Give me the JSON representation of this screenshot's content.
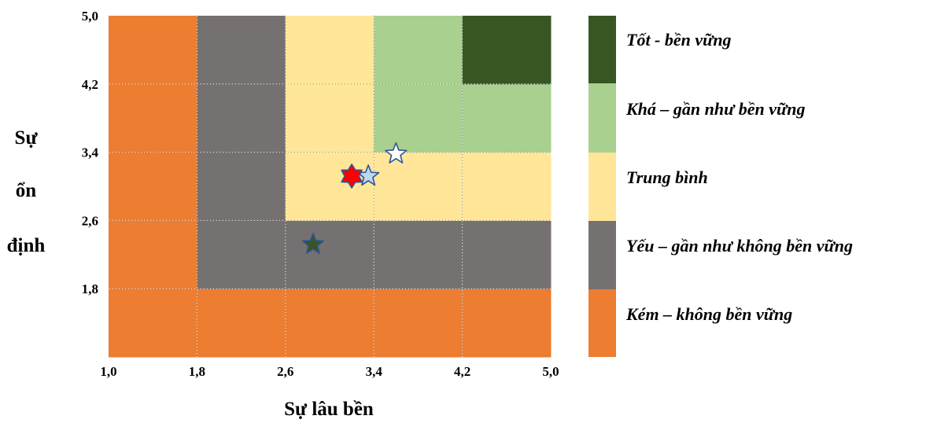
{
  "chart_data": {
    "type": "heatmap",
    "title": "",
    "xlabel": "Sự lâu bền",
    "ylabel_lines": [
      "Sự",
      "ổn",
      "định"
    ],
    "x_edges": [
      1.0,
      1.8,
      2.6,
      3.4,
      4.2,
      5.0
    ],
    "y_edges": [
      1.0,
      1.8,
      2.6,
      3.4,
      4.2,
      5.0
    ],
    "x_tick_labels": [
      "1,0",
      "1,8",
      "2,6",
      "3,4",
      "4,2",
      "5,0"
    ],
    "y_tick_labels": [
      "1,8",
      "2,6",
      "3,4",
      "4,2",
      "5,0"
    ],
    "xlim": [
      1.0,
      5.0
    ],
    "ylim": [
      1.0,
      5.0
    ],
    "grid": true,
    "legend_position": "right",
    "classes": [
      {
        "label": "Tốt - bền vững",
        "color": "#375623"
      },
      {
        "label": "Khá – gần như bền vững",
        "color": "#a9d08e"
      },
      {
        "label": "Trung bình",
        "color": "#ffe699"
      },
      {
        "label": "Yếu – gần như không bền vững",
        "color": "#767171"
      },
      {
        "label": "Kém – không bền vững",
        "color": "#ed7d31"
      }
    ],
    "cells": [
      [
        "Kém – không bền vững",
        "Kém – không bền vững",
        "Kém – không bền vững",
        "Kém – không bền vững",
        "Kém – không bền vững"
      ],
      [
        "Kém – không bền vững",
        "Yếu – gần như không bền vững",
        "Yếu – gần như không bền vững",
        "Yếu – gần như không bền vững",
        "Yếu – gần như không bền vững"
      ],
      [
        "Kém – không bền vững",
        "Yếu – gần như không bền vững",
        "Trung bình",
        "Trung bình",
        "Trung bình"
      ],
      [
        "Kém – không bền vững",
        "Yếu – gần như không bền vững",
        "Trung bình",
        "Khá – gần như bền vững",
        "Khá – gần như bền vững"
      ],
      [
        "Kém – không bền vững",
        "Yếu – gần như không bền vững",
        "Trung bình",
        "Khá – gần như bền vững",
        "Tốt - bền vững"
      ]
    ],
    "points": [
      {
        "shape": "star-6",
        "x": 3.2,
        "y": 3.12,
        "fill": "#ff0000",
        "stroke": "#2e5597"
      },
      {
        "shape": "star-5",
        "x": 3.35,
        "y": 3.12,
        "fill": "#bdd7ee",
        "stroke": "#2e5597"
      },
      {
        "shape": "star-5",
        "x": 3.6,
        "y": 3.38,
        "fill": "#ffffff",
        "stroke": "#2e5597"
      },
      {
        "shape": "star-5",
        "x": 2.85,
        "y": 2.32,
        "fill": "#375623",
        "stroke": "#2e5597"
      }
    ]
  }
}
